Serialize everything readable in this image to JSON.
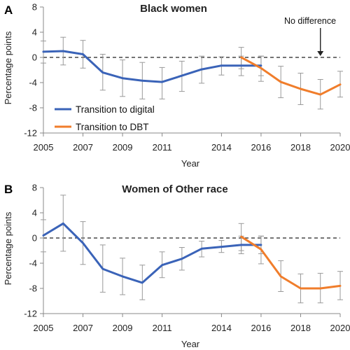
{
  "chart_data": [
    {
      "type": "line",
      "panel_letter": "A",
      "title": "Black women",
      "xlabel": "Year",
      "ylabel": "Percentage points",
      "ylim": [
        -12,
        8
      ],
      "xlim": [
        2005,
        2020
      ],
      "x_ticks": [
        "2005",
        "2007",
        "2009",
        "2011",
        "2014",
        "2016",
        "2018",
        "2020"
      ],
      "y_ticks": [
        "8",
        "4",
        "0",
        "-4",
        "-8",
        "-12"
      ],
      "reference_line": 0,
      "annotation": "No difference",
      "annotation_x": 2019,
      "legend_position": "lower-left",
      "series": [
        {
          "name": "Transition to digital",
          "color": "#3a63b8",
          "x": [
            2005,
            2006,
            2007,
            2008,
            2009,
            2010,
            2011,
            2012,
            2013,
            2014,
            2015,
            2016
          ],
          "values": [
            0.9,
            1.0,
            0.5,
            -2.4,
            -3.3,
            -3.7,
            -3.9,
            -2.9,
            -1.9,
            -1.3,
            -1.3,
            -1.3
          ],
          "err_low": [
            -0.9,
            -1.2,
            -1.7,
            -5.2,
            -6.2,
            -6.6,
            -6.6,
            -5.4,
            -4.1,
            -2.8,
            -2.9,
            -2.9
          ],
          "err_high": [
            2.6,
            3.2,
            2.7,
            0.5,
            -0.4,
            -0.8,
            -1.6,
            -0.6,
            0.2,
            0.1,
            0.2,
            0.2
          ]
        },
        {
          "name": "Transition to DBT",
          "color": "#f07d2b",
          "x": [
            2015,
            2016,
            2017,
            2018,
            2019,
            2020
          ],
          "values": [
            0.0,
            -1.7,
            -3.9,
            -5.0,
            -5.9,
            -4.3
          ],
          "err_low": [
            -1.8,
            -3.8,
            -6.4,
            -7.5,
            -8.2,
            -6.3
          ],
          "err_high": [
            1.6,
            0.2,
            -1.4,
            -2.5,
            -3.5,
            -2.2
          ]
        }
      ]
    },
    {
      "type": "line",
      "panel_letter": "B",
      "title": "Women of Other race",
      "xlabel": "Year",
      "ylabel": "Percentage points",
      "ylim": [
        -12,
        8
      ],
      "xlim": [
        2005,
        2020
      ],
      "x_ticks": [
        "2005",
        "2007",
        "2009",
        "2011",
        "2014",
        "2016",
        "2018",
        "2020"
      ],
      "y_ticks": [
        "8",
        "4",
        "0",
        "-4",
        "-8",
        "-12"
      ],
      "reference_line": 0,
      "series": [
        {
          "name": "Transition to digital",
          "color": "#3a63b8",
          "x": [
            2005,
            2006,
            2007,
            2008,
            2009,
            2010,
            2011,
            2012,
            2013,
            2014,
            2015,
            2016
          ],
          "values": [
            0.4,
            2.3,
            -0.8,
            -4.9,
            -6.1,
            -7.1,
            -4.3,
            -3.3,
            -1.7,
            -1.4,
            -1.1,
            -1.1
          ],
          "err_low": [
            -2.2,
            -2.1,
            -4.2,
            -8.6,
            -9.0,
            -9.8,
            -6.3,
            -5.1,
            -3.0,
            -2.3,
            -2.5,
            -2.5
          ],
          "err_high": [
            2.9,
            6.8,
            2.6,
            -1.1,
            -3.2,
            -4.3,
            -2.2,
            -1.5,
            -0.5,
            -0.4,
            0.3,
            0.3
          ]
        },
        {
          "name": "Transition to DBT",
          "color": "#f07d2b",
          "x": [
            2015,
            2016,
            2017,
            2018,
            2019,
            2020
          ],
          "values": [
            0.2,
            -1.8,
            -6.1,
            -8.0,
            -8.0,
            -7.6
          ],
          "err_low": [
            -2.0,
            -4.1,
            -8.5,
            -10.3,
            -10.3,
            -9.8
          ],
          "err_high": [
            2.3,
            0.3,
            -3.6,
            -5.7,
            -5.6,
            -5.3
          ]
        }
      ]
    }
  ]
}
